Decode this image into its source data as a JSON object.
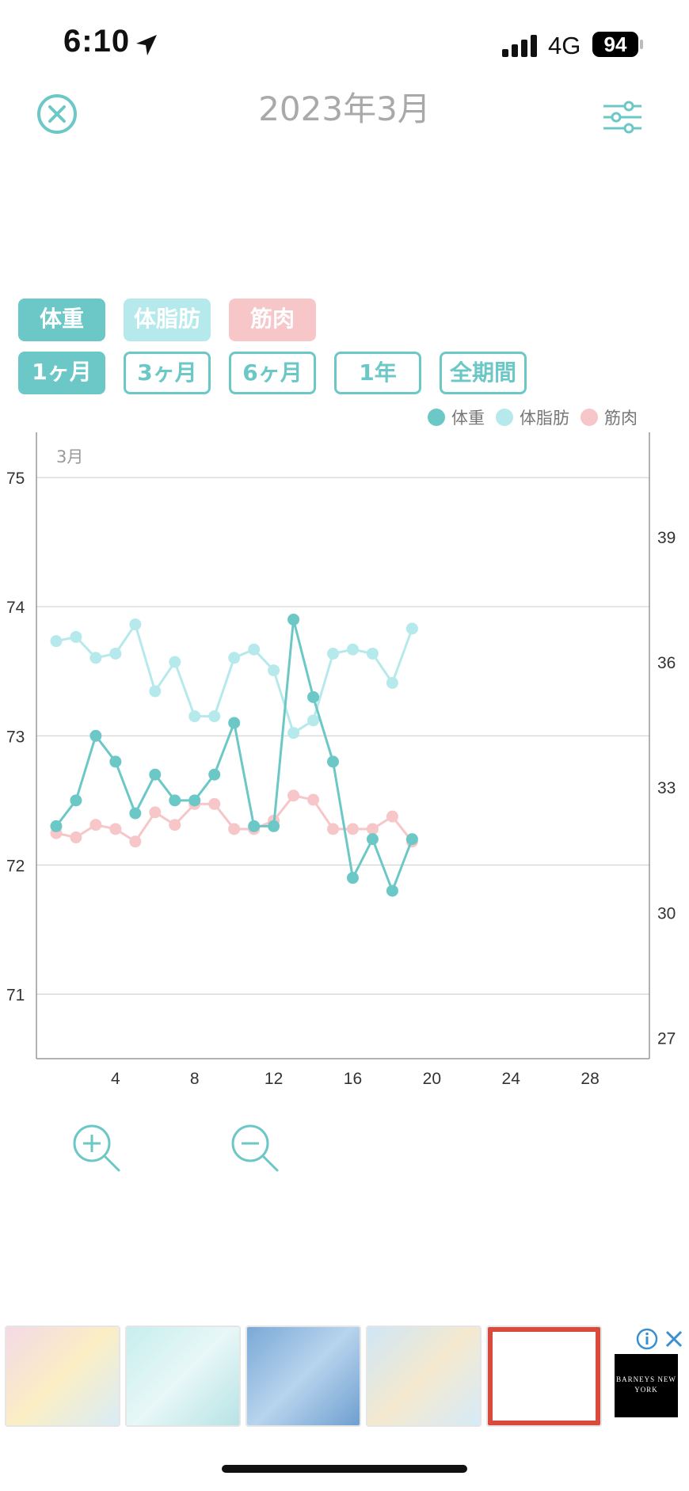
{
  "status_bar": {
    "time": "6:10",
    "network": "4G",
    "battery": "94"
  },
  "header": {
    "title": "2023年3月"
  },
  "type_tabs": [
    {
      "label": "体重",
      "style": "solid"
    },
    {
      "label": "体脂肪",
      "style": "light"
    },
    {
      "label": "筋肉",
      "style": "pink"
    }
  ],
  "period_tabs": [
    {
      "label": "1ヶ月",
      "selected": true
    },
    {
      "label": "3ヶ月",
      "selected": false
    },
    {
      "label": "6ヶ月",
      "selected": false
    },
    {
      "label": "1年",
      "selected": false
    },
    {
      "label": "全期間",
      "selected": false
    }
  ],
  "colors": {
    "weight": "#6cc8c6",
    "body_fat": "#b6e9ec",
    "muscle": "#f6c6c8",
    "axis": "#999999",
    "grid": "#cccccc"
  },
  "chart_data": {
    "type": "line",
    "month_label": "3月",
    "legend": [
      "体重",
      "体脂肪",
      "筋肉"
    ],
    "legend_position": "top-right",
    "x_ticks": [
      4,
      8,
      12,
      16,
      20,
      24,
      28
    ],
    "xlim": [
      0,
      31
    ],
    "left_axis": {
      "ticks": [
        75,
        74,
        73,
        72,
        71
      ],
      "ylim": [
        70.5,
        75.35
      ]
    },
    "right_axis": {
      "ticks": [
        39,
        36,
        33,
        30,
        27
      ],
      "ylim": [
        26.5,
        41.5
      ]
    },
    "grid": true,
    "series": [
      {
        "name": "体重",
        "axis": "left",
        "x": [
          1,
          2,
          3,
          4,
          5,
          6,
          7,
          8,
          9,
          10,
          11,
          12,
          13,
          14,
          15,
          16,
          17,
          18,
          19
        ],
        "values": [
          72.3,
          72.5,
          73.0,
          72.8,
          72.4,
          72.7,
          72.5,
          72.5,
          72.7,
          73.1,
          72.3,
          72.3,
          73.9,
          73.3,
          72.8,
          71.9,
          72.2,
          71.8,
          72.2
        ]
      },
      {
        "name": "体脂肪",
        "axis": "right",
        "x": [
          1,
          2,
          3,
          4,
          5,
          6,
          7,
          8,
          9,
          10,
          11,
          12,
          13,
          14,
          15,
          16,
          17,
          18,
          19
        ],
        "values": [
          36.5,
          36.6,
          36.1,
          36.2,
          36.9,
          35.3,
          36.0,
          34.7,
          34.7,
          36.1,
          36.3,
          35.8,
          34.3,
          34.6,
          36.2,
          36.3,
          36.2,
          35.5,
          36.8
        ]
      },
      {
        "name": "筋肉",
        "axis": "right",
        "x": [
          1,
          2,
          3,
          4,
          5,
          6,
          7,
          8,
          9,
          10,
          11,
          12,
          13,
          14,
          15,
          16,
          17,
          18,
          19
        ],
        "values": [
          31.9,
          31.8,
          32.1,
          32.0,
          31.7,
          32.4,
          32.1,
          32.6,
          32.6,
          32.0,
          32.0,
          32.2,
          32.8,
          32.7,
          32.0,
          32.0,
          32.0,
          32.3,
          31.7
        ]
      }
    ]
  },
  "ad": {
    "brand": "BARNEYS NEW YORK",
    "info": "i",
    "close": "✕"
  }
}
